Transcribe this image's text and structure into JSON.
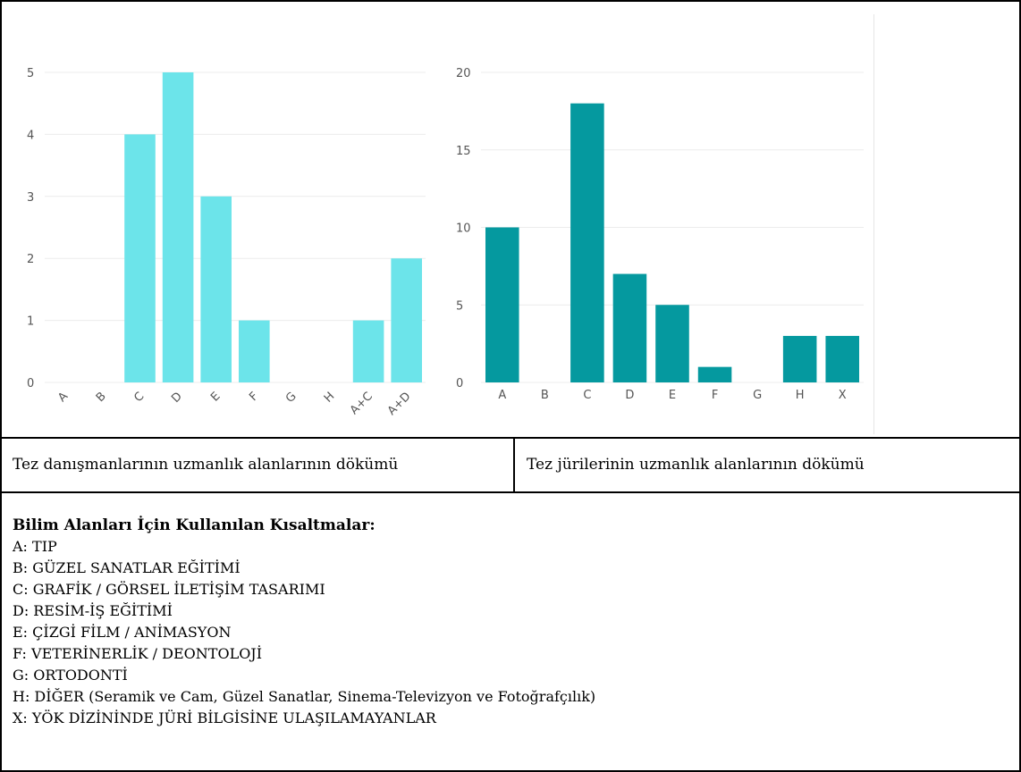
{
  "chart_data": [
    {
      "type": "bar",
      "categories": [
        "A",
        "B",
        "C",
        "D",
        "E",
        "F",
        "G",
        "H",
        "A+C",
        "A+D"
      ],
      "values": [
        0,
        0,
        4,
        5,
        3,
        1,
        0,
        0,
        1,
        2
      ],
      "yticks": [
        0,
        1,
        2,
        3,
        4,
        5
      ],
      "ylim": [
        0,
        5
      ],
      "grid": true,
      "bar_color": "#6ce4ea",
      "xtick_rotation": -45
    },
    {
      "type": "bar",
      "categories": [
        "A",
        "B",
        "C",
        "D",
        "E",
        "F",
        "G",
        "H",
        "X"
      ],
      "values": [
        10,
        0,
        18,
        7,
        5,
        1,
        0,
        3,
        3
      ],
      "yticks": [
        0,
        5,
        10,
        15,
        20
      ],
      "ylim": [
        0,
        20
      ],
      "grid": true,
      "bar_color": "#05999f",
      "xtick_rotation": 0
    }
  ],
  "captions": {
    "left": "Tez danışmanlarının uzmanlık alanlarının dökümü",
    "right": "Tez jürilerinin uzmanlık alanlarının dökümü"
  },
  "legend": {
    "title": "Bilim Alanları İçin Kullanılan Kısaltmalar:",
    "items": [
      "A: TIP",
      "B: GÜZEL SANATLAR EĞİTİMİ",
      "C: GRAFİK / GÖRSEL İLETİŞİM TASARIMI",
      "D: RESİM-İŞ EĞİTİMİ",
      "E: ÇİZGİ FİLM / ANİMASYON",
      "F: VETERİNERLİK / DEONTOLOJİ",
      "G: ORTODONTİ",
      "H: DİĞER (Seramik ve Cam, Güzel Sanatlar, Sinema-Televizyon ve Fotoğrafçılık)",
      "X: YÖK DİZİNİNDE JÜRİ BİLGİSİNE ULAŞILAMAYANLAR"
    ]
  }
}
